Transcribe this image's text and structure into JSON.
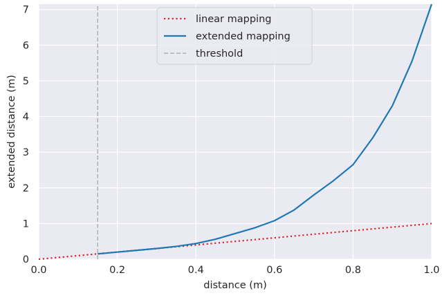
{
  "chart_data": {
    "type": "line",
    "xlabel": "distance (m)",
    "ylabel": "extended distance (m)",
    "xlim": [
      0.0,
      1.0
    ],
    "ylim": [
      0,
      7.15
    ],
    "x_ticks": [
      {
        "value": 0.0,
        "label": "0.0"
      },
      {
        "value": 0.2,
        "label": "0.2"
      },
      {
        "value": 0.4,
        "label": "0.4"
      },
      {
        "value": 0.6,
        "label": "0.6"
      },
      {
        "value": 0.8,
        "label": "0.8"
      },
      {
        "value": 1.0,
        "label": "1.0"
      }
    ],
    "y_ticks": [
      {
        "value": 0,
        "label": "0"
      },
      {
        "value": 1,
        "label": "1"
      },
      {
        "value": 2,
        "label": "2"
      },
      {
        "value": 3,
        "label": "3"
      },
      {
        "value": 4,
        "label": "4"
      },
      {
        "value": 5,
        "label": "5"
      },
      {
        "value": 6,
        "label": "6"
      },
      {
        "value": 7,
        "label": "7"
      }
    ],
    "grid": true,
    "background_color": "#eaeaf2",
    "legend_position": "top-center",
    "series": [
      {
        "name": "linear mapping",
        "style": "dotted",
        "color": "#d62728",
        "x": [
          0.0,
          1.0
        ],
        "y": [
          0.0,
          1.0
        ]
      },
      {
        "name": "extended mapping",
        "style": "solid",
        "color": "#1f77b4",
        "x": [
          0.15,
          0.2,
          0.25,
          0.3,
          0.35,
          0.4,
          0.45,
          0.5,
          0.55,
          0.6,
          0.65,
          0.7,
          0.75,
          0.8,
          0.85,
          0.9,
          0.95,
          1.0
        ],
        "y": [
          0.15,
          0.2,
          0.25,
          0.3,
          0.36,
          0.44,
          0.56,
          0.72,
          0.88,
          1.08,
          1.38,
          1.8,
          2.2,
          2.65,
          3.4,
          4.3,
          5.55,
          7.15
        ]
      },
      {
        "name": "threshold",
        "style": "dashed",
        "color": "#b0b0b0",
        "x": [
          0.15,
          0.15
        ],
        "y": [
          0,
          7.15
        ]
      }
    ]
  }
}
